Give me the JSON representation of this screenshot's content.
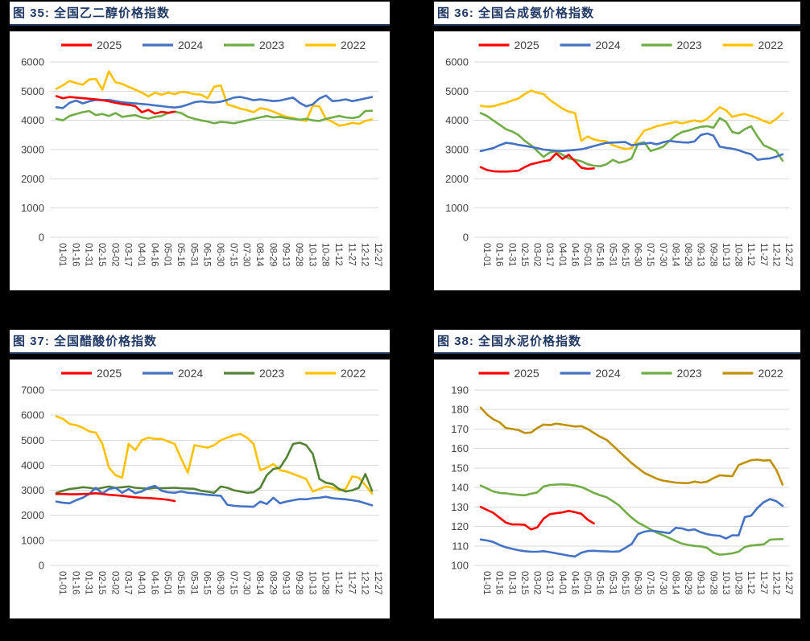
{
  "page": {
    "background": "#000000",
    "panel_background": "#ffffff",
    "title_color": "#1F3864",
    "grid_color": "#d9d9d9",
    "axis_text_color": "#404040"
  },
  "chart_data": [
    {
      "type": "line",
      "title": "图 35:  全国乙二醇价格指数",
      "legend_position": "top",
      "grid": true,
      "ylim": [
        0,
        6000
      ],
      "ytick_step": 1000,
      "categories": [
        "01-01",
        "01-16",
        "01-31",
        "02-15",
        "03-02",
        "03-17",
        "04-01",
        "04-16",
        "05-01",
        "05-16",
        "05-31",
        "06-15",
        "06-30",
        "07-15",
        "07-30",
        "08-14",
        "08-29",
        "09-13",
        "09-28",
        "10-13",
        "10-28",
        "11-12",
        "11-27",
        "12-12",
        "12-27"
      ],
      "series": [
        {
          "name": "2025",
          "color": "#FF0000",
          "values": [
            4830,
            4760,
            4800,
            4780,
            4760,
            4740,
            4720,
            4690,
            4650,
            4600,
            4560,
            4530,
            4490,
            4280,
            4360,
            4230,
            4290,
            4260,
            4300
          ]
        },
        {
          "name": "2024",
          "color": "#4472C4",
          "values": [
            4450,
            4420,
            4600,
            4680,
            4580,
            4650,
            4700,
            4690,
            4700,
            4660,
            4620,
            4600,
            4580,
            4560,
            4540,
            4510,
            4490,
            4460,
            4440,
            4470,
            4540,
            4620,
            4650,
            4620,
            4610,
            4640,
            4700,
            4780,
            4800,
            4750,
            4690,
            4720,
            4690,
            4660,
            4680,
            4730,
            4780,
            4600,
            4480,
            4550,
            4750,
            4850,
            4660,
            4680,
            4720,
            4660,
            4700,
            4750,
            4800
          ]
        },
        {
          "name": "2023",
          "color": "#70AD47",
          "values": [
            4050,
            4000,
            4150,
            4220,
            4280,
            4320,
            4180,
            4220,
            4150,
            4250,
            4120,
            4150,
            4180,
            4100,
            4060,
            4120,
            4150,
            4250,
            4300,
            4250,
            4120,
            4050,
            4000,
            3960,
            3900,
            3950,
            3930,
            3900,
            3950,
            4000,
            4050,
            4100,
            4150,
            4100,
            4120,
            4080,
            4050,
            4020,
            4050,
            4000,
            3980,
            4050,
            4100,
            4150,
            4100,
            4080,
            4120,
            4320,
            4330
          ]
        },
        {
          "name": "2022",
          "color": "#FFC000",
          "values": [
            5080,
            5200,
            5350,
            5280,
            5220,
            5400,
            5420,
            5050,
            5680,
            5300,
            5250,
            5150,
            5050,
            4950,
            4820,
            4950,
            4880,
            4950,
            4900,
            4980,
            4950,
            4900,
            4880,
            4760,
            5150,
            5200,
            4550,
            4480,
            4400,
            4350,
            4280,
            4420,
            4380,
            4300,
            4200,
            4120,
            4080,
            4020,
            3980,
            4500,
            4480,
            4050,
            3950,
            3820,
            3850,
            3920,
            3880,
            3980,
            4030
          ]
        }
      ]
    },
    {
      "type": "line",
      "title": "图 36:  全国合成氨价格指数",
      "legend_position": "top",
      "grid": true,
      "ylim": [
        0,
        6000
      ],
      "ytick_step": 1000,
      "categories": [
        "01-01",
        "01-16",
        "01-31",
        "02-15",
        "03-02",
        "03-17",
        "04-01",
        "04-16",
        "05-01",
        "05-16",
        "05-31",
        "06-15",
        "06-30",
        "07-15",
        "07-30",
        "08-14",
        "08-29",
        "09-13",
        "09-28",
        "10-13",
        "10-28",
        "11-12",
        "11-27",
        "12-12",
        "12-27"
      ],
      "series": [
        {
          "name": "2025",
          "color": "#FF0000",
          "values": [
            2400,
            2300,
            2260,
            2250,
            2250,
            2260,
            2280,
            2400,
            2500,
            2550,
            2600,
            2640,
            2870,
            2680,
            2820,
            2600,
            2380,
            2340,
            2360
          ]
        },
        {
          "name": "2024",
          "color": "#4472C4",
          "values": [
            2950,
            3000,
            3050,
            3150,
            3230,
            3210,
            3160,
            3130,
            3090,
            3050,
            3000,
            2980,
            2960,
            2950,
            2970,
            2990,
            3010,
            3060,
            3120,
            3180,
            3230,
            3240,
            3250,
            3260,
            3150,
            3180,
            3200,
            3230,
            3180,
            3250,
            3300,
            3270,
            3250,
            3240,
            3280,
            3500,
            3550,
            3480,
            3100,
            3060,
            3030,
            2980,
            2900,
            2840,
            2650,
            2680,
            2700,
            2760,
            2840
          ]
        },
        {
          "name": "2023",
          "color": "#70AD47",
          "values": [
            4250,
            4150,
            4000,
            3850,
            3700,
            3620,
            3500,
            3300,
            3150,
            2950,
            2750,
            2900,
            2950,
            2820,
            2700,
            2650,
            2600,
            2500,
            2450,
            2430,
            2500,
            2650,
            2550,
            2600,
            2700,
            3200,
            3250,
            2950,
            3020,
            3100,
            3300,
            3480,
            3600,
            3650,
            3720,
            3780,
            3800,
            3750,
            4080,
            3950,
            3600,
            3550,
            3700,
            3800,
            3450,
            3150,
            3050,
            2950,
            2620
          ]
        },
        {
          "name": "2022",
          "color": "#FFC000",
          "values": [
            4500,
            4470,
            4480,
            4550,
            4600,
            4680,
            4750,
            4900,
            5020,
            4950,
            4900,
            4700,
            4550,
            4400,
            4300,
            4250,
            3300,
            3450,
            3350,
            3300,
            3280,
            3150,
            3080,
            3020,
            3050,
            3350,
            3650,
            3720,
            3800,
            3850,
            3900,
            3950,
            3900,
            3950,
            4000,
            3950,
            4050,
            4250,
            4450,
            4350,
            4120,
            4180,
            4220,
            4150,
            4080,
            3980,
            3900,
            4050,
            4240
          ]
        }
      ]
    },
    {
      "type": "line",
      "title": "图 37:  全国醋酸价格指数",
      "legend_position": "top",
      "grid": true,
      "ylim": [
        0,
        7000
      ],
      "ytick_step": 1000,
      "categories": [
        "01-01",
        "01-16",
        "01-31",
        "02-15",
        "03-02",
        "03-17",
        "04-01",
        "04-16",
        "05-01",
        "05-16",
        "05-31",
        "06-15",
        "06-30",
        "07-15",
        "07-30",
        "08-14",
        "08-29",
        "09-13",
        "09-28",
        "10-13",
        "10-28",
        "11-12",
        "11-27",
        "12-12",
        "12-27"
      ],
      "series": [
        {
          "name": "2025",
          "color": "#FF0000",
          "values": [
            2850,
            2850,
            2840,
            2840,
            2850,
            2860,
            2880,
            2850,
            2820,
            2800,
            2780,
            2750,
            2720,
            2700,
            2690,
            2670,
            2650,
            2620,
            2570
          ]
        },
        {
          "name": "2024",
          "color": "#4472C4",
          "values": [
            2550,
            2500,
            2480,
            2600,
            2700,
            2850,
            3100,
            2870,
            3050,
            3100,
            2900,
            3050,
            2880,
            2950,
            3100,
            3180,
            2980,
            2920,
            2900,
            2950,
            2900,
            2880,
            2850,
            2820,
            2800,
            2780,
            2420,
            2380,
            2360,
            2350,
            2340,
            2550,
            2450,
            2700,
            2480,
            2550,
            2600,
            2650,
            2640,
            2680,
            2700,
            2740,
            2680,
            2660,
            2640,
            2600,
            2560,
            2480,
            2400
          ]
        },
        {
          "name": "2023",
          "color": "#548235",
          "values": [
            2900,
            2980,
            3050,
            3080,
            3120,
            3100,
            3050,
            3100,
            3150,
            3100,
            3120,
            3150,
            3100,
            3080,
            3060,
            3100,
            3080,
            3090,
            3100,
            3080,
            3070,
            3060,
            2980,
            2940,
            2900,
            3150,
            3100,
            3000,
            2950,
            2900,
            2920,
            3100,
            3600,
            3850,
            3900,
            4300,
            4850,
            4900,
            4800,
            4450,
            3450,
            3300,
            3250,
            3050,
            2950,
            3000,
            3100,
            3650,
            2980
          ]
        },
        {
          "name": "2022",
          "color": "#FFC000",
          "values": [
            5950,
            5850,
            5650,
            5600,
            5500,
            5350,
            5300,
            4850,
            3900,
            3600,
            3500,
            4850,
            4600,
            5000,
            5100,
            5050,
            5050,
            4950,
            4850,
            4250,
            3700,
            4800,
            4750,
            4700,
            4800,
            5000,
            5100,
            5200,
            5250,
            5100,
            4850,
            3800,
            3900,
            4050,
            3800,
            3750,
            3650,
            3550,
            3450,
            2950,
            3050,
            3150,
            3100,
            3000,
            3050,
            3550,
            3500,
            3200,
            2870
          ]
        }
      ]
    },
    {
      "type": "line",
      "title": "图 38:  全国水泥价格指数",
      "legend_position": "top",
      "grid": true,
      "ylim": [
        100,
        190
      ],
      "ytick_step": 10,
      "categories": [
        "01-01",
        "01-16",
        "01-31",
        "02-15",
        "03-02",
        "03-17",
        "04-01",
        "04-16",
        "05-01",
        "05-16",
        "05-31",
        "06-15",
        "06-30",
        "07-15",
        "07-30",
        "08-14",
        "08-29",
        "09-13",
        "09-28",
        "10-13",
        "10-28",
        "11-12",
        "11-27",
        "12-12",
        "12-27"
      ],
      "series": [
        {
          "name": "2025",
          "color": "#FF0000",
          "values": [
            130,
            128.5,
            127,
            124.5,
            122,
            121,
            121,
            120.8,
            118.5,
            119.5,
            124,
            126.3,
            126.8,
            127.2,
            128,
            127.3,
            126.5,
            123.5,
            121.5
          ]
        },
        {
          "name": "2024",
          "color": "#4472C4",
          "values": [
            113.3,
            112.8,
            112,
            110.5,
            109.3,
            108.5,
            107.8,
            107.3,
            107,
            107,
            107.3,
            106.8,
            106.2,
            105.6,
            105,
            104.6,
            106.5,
            107.4,
            107.5,
            107.3,
            107.2,
            107,
            107.2,
            109,
            111,
            116,
            117.3,
            117.8,
            117.5,
            117,
            116.5,
            119.3,
            119,
            118,
            118.5,
            117,
            116,
            115.5,
            115.2,
            113.8,
            115.5,
            115.4,
            124.8,
            125.5,
            129.5,
            132.5,
            134,
            133,
            130.5
          ]
        },
        {
          "name": "2023",
          "color": "#70AD47",
          "values": [
            141,
            139.5,
            138,
            137.2,
            137,
            136.5,
            136.2,
            136,
            136.8,
            137.5,
            140.5,
            141.3,
            141.5,
            141.6,
            141.4,
            141,
            140.2,
            138.8,
            137.2,
            136,
            135,
            133,
            130.8,
            127.5,
            124.5,
            122,
            120.3,
            118.5,
            116.8,
            115.5,
            114,
            112.5,
            111.2,
            110.5,
            110,
            109.8,
            109,
            106.5,
            105.5,
            105.8,
            106.2,
            107,
            109.5,
            110.2,
            110.5,
            110.8,
            113.2,
            113.4,
            113.5
          ]
        },
        {
          "name": "2022",
          "color": "#BF9000",
          "values": [
            181,
            177.5,
            175,
            173.5,
            170.5,
            170,
            169.5,
            168,
            168.2,
            170.5,
            172.3,
            172,
            172.8,
            172.3,
            171.8,
            171.3,
            171.5,
            170,
            168,
            166,
            164.5,
            161.5,
            158.5,
            155.5,
            152.5,
            150,
            147.5,
            146,
            144.5,
            143.5,
            143,
            142.5,
            142.3,
            142.2,
            143,
            142.5,
            143,
            144.8,
            146.3,
            146,
            145.8,
            151.5,
            152.8,
            154,
            154.3,
            153.8,
            154,
            149,
            141.5
          ]
        }
      ]
    }
  ]
}
